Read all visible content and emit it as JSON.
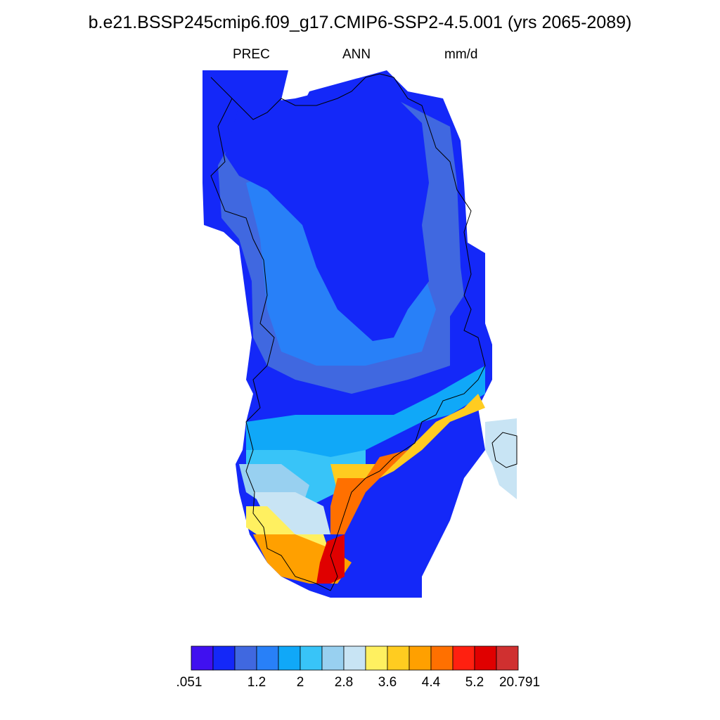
{
  "title": "b.e21.BSSP245cmip6.f09_g17.CMIP6-SSP2-4.5.001 (yrs 2065-2089)",
  "subtitle": {
    "variable": "PREC",
    "season": "ANN",
    "units": "mm/d"
  },
  "colorbar": {
    "colors": [
      "#4010f0",
      "#1428f8",
      "#4068e0",
      "#2880f8",
      "#10a8f8",
      "#38c4f8",
      "#98d0f0",
      "#c8e4f4",
      "#fff060",
      "#ffcc20",
      "#ffa000",
      "#ff7000",
      "#ff2010",
      "#e00000",
      "#d03030"
    ],
    "labels": [
      ".051",
      "1.2",
      "2",
      "2.8",
      "3.6",
      "4.4",
      "5.2",
      "20.791"
    ]
  },
  "map": {
    "region": "Greenland",
    "level_fill": [
      {
        "level": 1,
        "color": "#1428f8"
      },
      {
        "level": 2,
        "color": "#4068e0"
      },
      {
        "level": 3,
        "color": "#2880f8"
      },
      {
        "level": 4,
        "color": "#10a8f8"
      },
      {
        "level": 5,
        "color": "#38c4f8"
      },
      {
        "level": 6,
        "color": "#98d0f0"
      },
      {
        "level": 7,
        "color": "#c8e4f4"
      },
      {
        "level": 8,
        "color": "#fff060"
      },
      {
        "level": 9,
        "color": "#ffcc20"
      },
      {
        "level": 10,
        "color": "#ffa000"
      },
      {
        "level": 11,
        "color": "#ff7000"
      },
      {
        "level": 12,
        "color": "#e00000"
      }
    ]
  }
}
